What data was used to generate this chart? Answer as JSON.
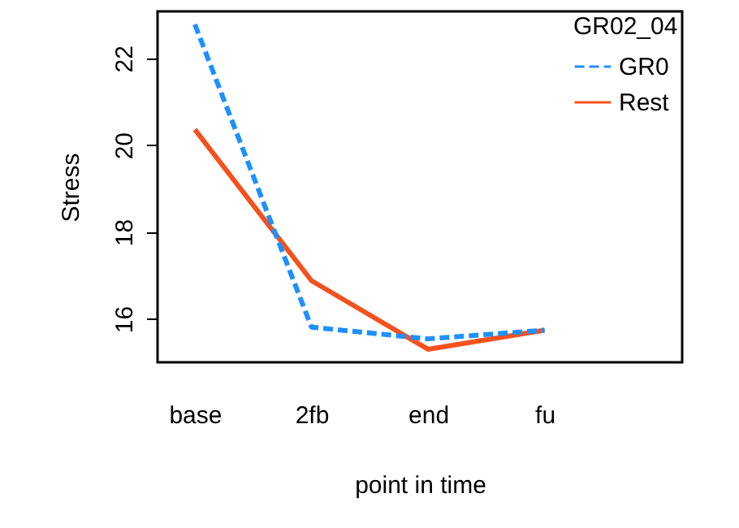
{
  "chart_data": {
    "type": "line",
    "xlabel": "point in time",
    "ylabel": "Stress",
    "legend_title": "GR02_04",
    "categories": [
      "base",
      "2fb",
      "end",
      "fu"
    ],
    "series": [
      {
        "name": "GR0",
        "color": "#1e90ff",
        "line_style": "dashed",
        "values": [
          22.78,
          15.81,
          15.54,
          15.74
        ]
      },
      {
        "name": "Rest",
        "color": "#f4511e",
        "line_style": "solid",
        "values": [
          20.36,
          16.88,
          15.3,
          15.74
        ]
      }
    ],
    "ylim": [
      15.0,
      23.08
    ],
    "yticks": [
      16,
      18,
      20,
      22
    ],
    "grid": false,
    "legend": "top right",
    "marker": "none"
  }
}
